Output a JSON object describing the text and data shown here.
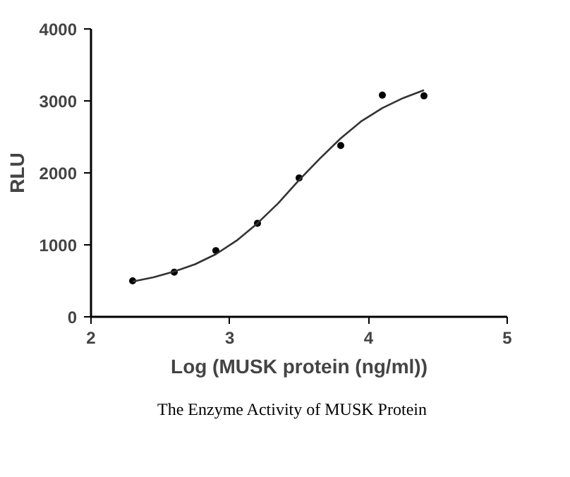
{
  "chart_data": {
    "type": "scatter",
    "xlabel": "Log (MUSK protein (ng/ml))",
    "ylabel": "RLU",
    "series": [
      {
        "color": "#000000",
        "marker": "circle",
        "x": [
          2.3,
          2.6,
          2.9,
          3.2,
          3.5,
          3.8,
          4.1,
          4.4
        ],
        "values": [
          500,
          620,
          920,
          1300,
          1930,
          2380,
          3080,
          3070
        ]
      },
      {
        "type": "line",
        "color": "#333333",
        "marker": "none",
        "x": [
          2.3,
          2.45,
          2.6,
          2.75,
          2.9,
          3.05,
          3.2,
          3.35,
          3.5,
          3.65,
          3.8,
          3.95,
          4.1,
          4.25,
          4.4
        ],
        "values": [
          490,
          550,
          630,
          730,
          870,
          1060,
          1300,
          1580,
          1900,
          2200,
          2480,
          2720,
          2900,
          3040,
          3150
        ]
      }
    ],
    "xlim": [
      2,
      5
    ],
    "ylim": [
      0,
      4000
    ],
    "xticks": [
      2,
      3,
      4,
      5
    ],
    "yticks": [
      0,
      1000,
      2000,
      3000,
      4000
    ],
    "grid": false,
    "annotations": [
      "The Enzyme Activity of MUSK Protein"
    ]
  }
}
